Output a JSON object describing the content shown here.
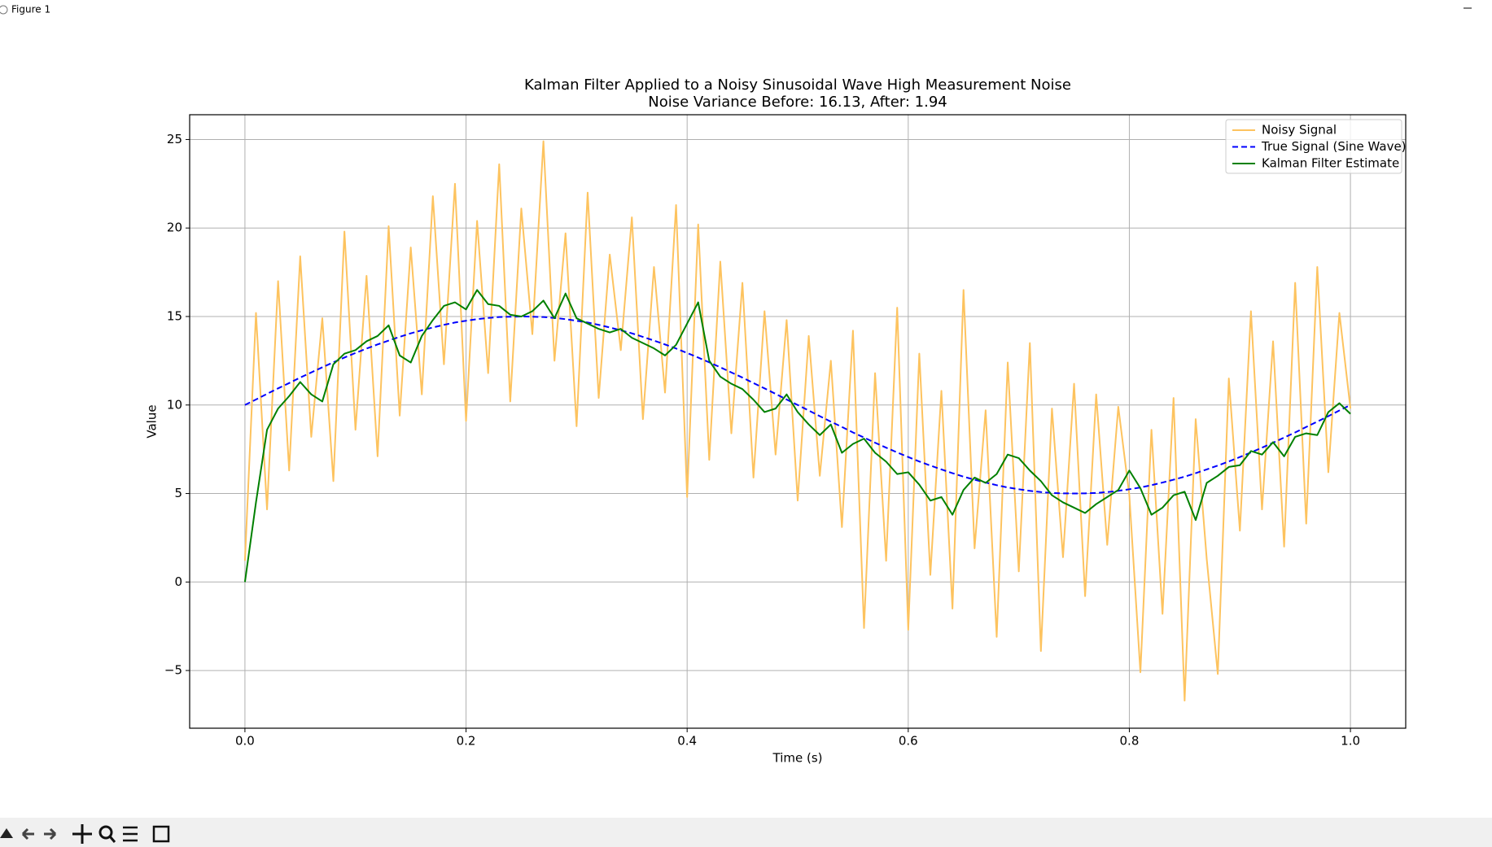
{
  "window_title": "Figure 1",
  "chart_data": {
    "type": "line",
    "title": "Kalman Filter Applied to a Noisy Sinusoidal Wave High Measurement Noise",
    "subtitle": "Noise Variance Before: 16.13, After: 1.94",
    "xlabel": "Time (s)",
    "ylabel": "Value",
    "x": [
      0,
      0.01,
      0.02,
      0.03,
      0.04,
      0.05,
      0.06,
      0.07,
      0.08,
      0.09,
      0.1,
      0.11,
      0.12,
      0.13,
      0.14,
      0.15,
      0.16,
      0.17,
      0.18,
      0.19,
      0.2,
      0.21,
      0.22,
      0.23,
      0.24,
      0.25,
      0.26,
      0.27,
      0.28,
      0.29,
      0.3,
      0.31,
      0.32,
      0.33,
      0.34,
      0.35,
      0.36,
      0.37,
      0.38,
      0.39,
      0.4,
      0.41,
      0.42,
      0.43,
      0.44,
      0.45,
      0.46,
      0.47,
      0.48,
      0.49,
      0.5,
      0.51,
      0.52,
      0.53,
      0.54,
      0.55,
      0.56,
      0.57,
      0.58,
      0.59,
      0.6,
      0.61,
      0.62,
      0.63,
      0.64,
      0.65,
      0.66,
      0.67,
      0.68,
      0.69,
      0.7,
      0.71,
      0.72,
      0.73,
      0.74,
      0.75,
      0.76,
      0.77,
      0.78,
      0.79,
      0.8,
      0.81,
      0.82,
      0.83,
      0.84,
      0.85,
      0.86,
      0.87,
      0.88,
      0.89,
      0.9,
      0.91,
      0.92,
      0.93,
      0.94,
      0.95,
      0.96,
      0.97,
      0.98,
      0.99,
      1
    ],
    "series": [
      {
        "name": "Noisy Signal",
        "color": "#fdc35f",
        "linestyle": "solid",
        "values": [
          1.2,
          15.2,
          4.1,
          17.0,
          6.3,
          18.4,
          8.2,
          14.9,
          5.7,
          19.8,
          8.6,
          17.3,
          7.1,
          20.1,
          9.4,
          18.9,
          10.6,
          21.8,
          12.3,
          22.5,
          9.1,
          20.4,
          11.8,
          23.6,
          10.2,
          21.1,
          14.0,
          24.9,
          12.5,
          19.7,
          8.8,
          22.0,
          10.4,
          18.5,
          13.1,
          20.6,
          9.2,
          17.8,
          10.7,
          21.3,
          4.8,
          20.2,
          6.9,
          18.1,
          8.4,
          16.9,
          5.9,
          15.3,
          7.2,
          14.8,
          4.6,
          13.9,
          6.0,
          12.5,
          3.1,
          14.2,
          -2.6,
          11.8,
          1.2,
          15.5,
          -2.7,
          12.9,
          0.4,
          10.8,
          -1.5,
          16.5,
          1.9,
          9.7,
          -3.1,
          12.4,
          0.6,
          13.5,
          -3.9,
          9.8,
          1.4,
          11.2,
          -0.8,
          10.6,
          2.1,
          9.9,
          4.9,
          -5.1,
          8.6,
          -1.8,
          10.4,
          -6.7,
          9.2,
          1.3,
          -5.2,
          11.5,
          2.9,
          15.3,
          4.1,
          13.6,
          2.0,
          16.9,
          3.3,
          17.8,
          6.2,
          15.2,
          9.8
        ]
      },
      {
        "name": "True Signal (Sine Wave)",
        "color": "#0000ff",
        "linestyle": "dashed",
        "values": [
          10,
          10.31,
          10.63,
          10.94,
          11.24,
          11.55,
          11.84,
          12.13,
          12.41,
          12.68,
          12.94,
          13.19,
          13.42,
          13.64,
          13.85,
          14.05,
          14.22,
          14.38,
          14.53,
          14.66,
          14.76,
          14.85,
          14.92,
          14.97,
          14.99,
          15,
          14.99,
          14.97,
          14.92,
          14.85,
          14.76,
          14.66,
          14.53,
          14.38,
          14.22,
          14.05,
          13.85,
          13.64,
          13.42,
          13.19,
          12.94,
          12.68,
          12.41,
          12.13,
          11.84,
          11.55,
          11.24,
          10.94,
          10.63,
          10.31,
          10,
          9.69,
          9.37,
          9.06,
          8.76,
          8.45,
          8.16,
          7.87,
          7.59,
          7.32,
          7.06,
          6.81,
          6.58,
          6.36,
          6.15,
          5.95,
          5.78,
          5.62,
          5.47,
          5.34,
          5.24,
          5.15,
          5.08,
          5.03,
          5.01,
          5,
          5.01,
          5.03,
          5.08,
          5.15,
          5.24,
          5.34,
          5.47,
          5.62,
          5.78,
          5.95,
          6.15,
          6.36,
          6.58,
          6.81,
          7.06,
          7.32,
          7.59,
          7.87,
          8.16,
          8.45,
          8.76,
          9.06,
          9.37,
          9.69,
          10
        ]
      },
      {
        "name": "Kalman Filter Estimate",
        "color": "#008000",
        "linestyle": "solid",
        "values": [
          0,
          4.5,
          8.6,
          9.8,
          10.5,
          11.3,
          10.6,
          10.2,
          12.3,
          12.9,
          13.1,
          13.6,
          13.9,
          14.5,
          12.8,
          12.4,
          13.9,
          14.8,
          15.6,
          15.8,
          15.4,
          16.5,
          15.7,
          15.6,
          15.1,
          15.0,
          15.3,
          15.9,
          14.9,
          16.3,
          14.9,
          14.6,
          14.3,
          14.1,
          14.3,
          13.8,
          13.5,
          13.2,
          12.8,
          13.4,
          14.6,
          15.8,
          12.5,
          11.6,
          11.2,
          10.9,
          10.3,
          9.6,
          9.8,
          10.6,
          9.6,
          8.9,
          8.3,
          8.9,
          7.3,
          7.8,
          8.1,
          7.3,
          6.8,
          6.1,
          6.2,
          5.5,
          4.6,
          4.8,
          3.8,
          5.2,
          5.9,
          5.6,
          6.1,
          7.2,
          7.0,
          6.3,
          5.7,
          4.9,
          4.5,
          4.2,
          3.9,
          4.4,
          4.8,
          5.2,
          6.3,
          5.3,
          3.8,
          4.2,
          4.9,
          5.1,
          3.5,
          5.6,
          6.0,
          6.5,
          6.6,
          7.4,
          7.2,
          7.9,
          7.1,
          8.2,
          8.4,
          8.3,
          9.6,
          10.1,
          9.5
        ]
      }
    ],
    "xlim": [
      -0.05,
      1.05
    ],
    "ylim": [
      -8.26,
      26.4
    ],
    "xticks": [
      {
        "value": 0,
        "label": "0.0"
      },
      {
        "value": 0.2,
        "label": "0.2"
      },
      {
        "value": 0.4,
        "label": "0.4"
      },
      {
        "value": 0.6,
        "label": "0.6"
      },
      {
        "value": 0.8,
        "label": "0.8"
      },
      {
        "value": 1,
        "label": "1.0"
      }
    ],
    "yticks": [
      {
        "value": -5,
        "label": "−5"
      },
      0,
      5,
      10,
      15,
      20,
      25
    ],
    "grid": true,
    "legend": "upper right"
  }
}
